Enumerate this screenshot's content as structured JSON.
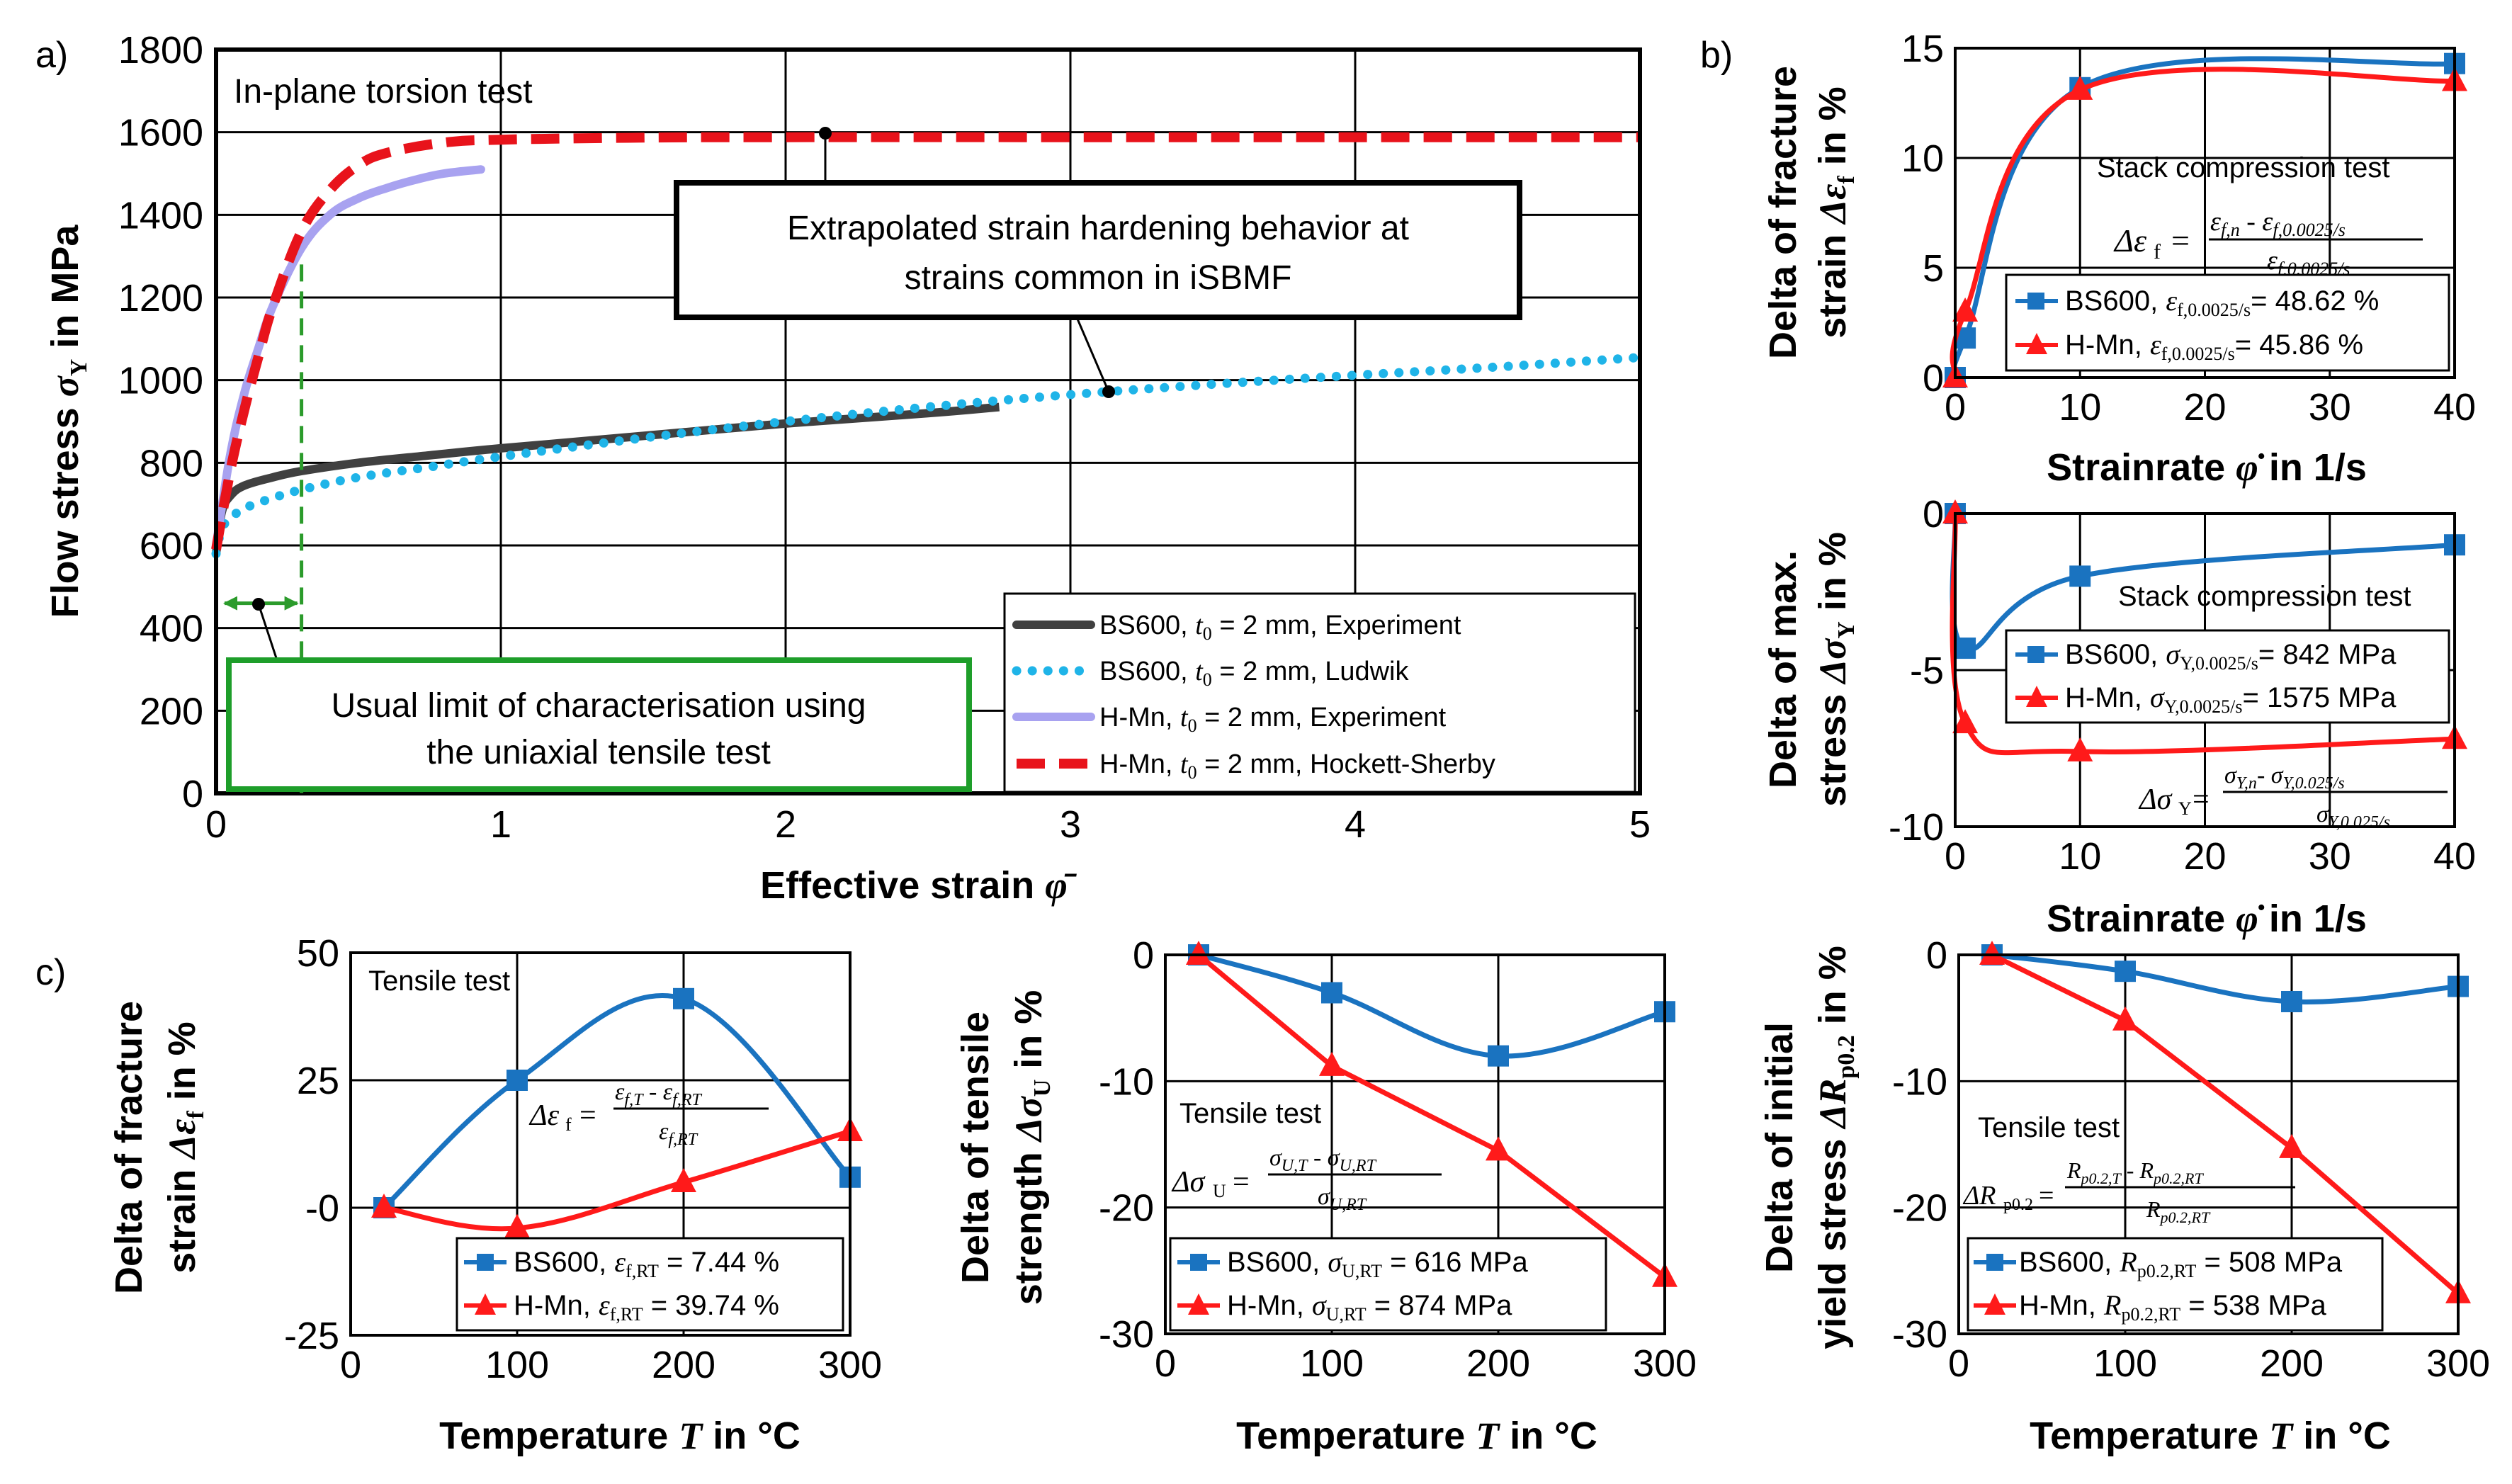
{
  "colors": {
    "bs600_exp": "#404040",
    "bs600_ludwik": "#1fb4e8",
    "hmn_exp": "#a8a2f0",
    "hmn_hs": "#e8131b",
    "blue": "#1a73c0",
    "red": "#ff1a1a",
    "green_dash": "#2b9b2b",
    "green_box": "#1e9e2a"
  },
  "labels": {
    "a": "a)",
    "b": "b)",
    "c": "c)",
    "a_title": "In-plane torsion test",
    "a_callout_1": "Extrapolated strain hardening behavior at",
    "a_callout_2": "strains common in iSBMF",
    "a_green_1": "Usual limit of characterisation using",
    "a_green_2": "the uniaxial tensile test",
    "stack_test": "Stack compression test",
    "tensile_test": "Tensile test"
  },
  "chart_data": [
    {
      "id": "a",
      "type": "line",
      "ylabel": "Flow stress σY in MPa",
      "xlabel": "Effective strain φ̄",
      "xlim": [
        0,
        5
      ],
      "ylim": [
        0,
        1800
      ],
      "xticks": [
        "0",
        "1",
        "2",
        "3",
        "4",
        "5"
      ],
      "yticks": [
        "0",
        "200",
        "400",
        "600",
        "800",
        "1000",
        "1200",
        "1400",
        "1600",
        "1800"
      ],
      "series": [
        {
          "name": "BS600, t0 = 2 mm, Experiment",
          "x": [
            0,
            0.02,
            0.05,
            0.1,
            0.2,
            0.3,
            0.5,
            0.75,
            1.0,
            1.5,
            2.0,
            2.5,
            2.75
          ],
          "y": [
            580,
            680,
            720,
            745,
            765,
            780,
            800,
            818,
            835,
            865,
            895,
            920,
            935
          ]
        },
        {
          "name": "BS600, t0 = 2 mm, Ludwik",
          "x": [
            0,
            0.02,
            0.05,
            0.1,
            0.2,
            0.3,
            0.5,
            0.75,
            1.0,
            1.5,
            2.0,
            2.5,
            3.0,
            3.5,
            4.0,
            4.5,
            5.0
          ],
          "y": [
            580,
            640,
            665,
            690,
            715,
            735,
            765,
            790,
            815,
            860,
            900,
            935,
            965,
            990,
            1012,
            1032,
            1055
          ]
        },
        {
          "name": "H-Mn,   t0 = 2 mm, Experiment",
          "x": [
            0,
            0.05,
            0.1,
            0.15,
            0.2,
            0.3,
            0.4,
            0.5,
            0.6,
            0.7,
            0.8,
            0.93
          ],
          "y": [
            600,
            820,
            970,
            1080,
            1180,
            1320,
            1400,
            1440,
            1465,
            1485,
            1500,
            1510
          ]
        },
        {
          "name": "H-Mn,   t0 = 2 mm, Hockett-Sherby",
          "x": [
            0,
            0.05,
            0.1,
            0.15,
            0.2,
            0.3,
            0.4,
            0.5,
            0.6,
            0.8,
            1.0,
            1.5,
            2.0,
            3.0,
            4.0,
            5.0
          ],
          "y": [
            590,
            780,
            930,
            1060,
            1180,
            1360,
            1460,
            1520,
            1550,
            1575,
            1582,
            1587,
            1588,
            1588,
            1588,
            1588
          ]
        }
      ],
      "legend": [
        "BS600, t0 = 2 mm, Experiment",
        "BS600, t0 = 2 mm, Ludwik",
        "H-Mn,   t0 = 2 mm, Experiment",
        "H-Mn,   t0 = 2 mm, Hockett-Sherby"
      ],
      "limit_strain": 0.3
    },
    {
      "id": "b_top",
      "type": "line",
      "ylabel_1": "Delta of fracture",
      "ylabel_2": "strain Δεf in %",
      "xlabel": "Strainrate φ̇ in 1/s",
      "xlim": [
        0,
        40
      ],
      "ylim": [
        0,
        15
      ],
      "xticks": [
        "0",
        "10",
        "20",
        "30",
        "40"
      ],
      "yticks": [
        "0",
        "5",
        "10",
        "15"
      ],
      "series": [
        {
          "name": "BS600, εf,0.0025/s= 48.62 %",
          "x": [
            0,
            0.8,
            10,
            40
          ],
          "y": [
            0,
            1.8,
            13.2,
            14.3
          ]
        },
        {
          "name": "H-Mn, εf,0.0025/s= 45.86 %",
          "x": [
            0,
            0.8,
            10,
            40
          ],
          "y": [
            0,
            3.0,
            13.1,
            13.5
          ]
        }
      ],
      "legend": [
        "BS600, εf,0.0025/s= 48.62 %",
        "H-Mn, εf,0.0025/s= 45.86 %"
      ]
    },
    {
      "id": "b_bottom",
      "type": "line",
      "ylabel_1": "Delta of max.",
      "ylabel_2": "stress ΔσY in %",
      "xlabel": "Strainrate φ̇ in 1/s",
      "xlim": [
        0,
        40
      ],
      "ylim": [
        -10,
        0
      ],
      "xticks": [
        "0",
        "10",
        "20",
        "30",
        "40"
      ],
      "yticks": [
        "0",
        "-5",
        "-10"
      ],
      "series": [
        {
          "name": "BS600, σY,0.0025/s= 842 MPa",
          "x": [
            0,
            0.8,
            10,
            40
          ],
          "y": [
            0,
            -4.3,
            -2.0,
            -1.0
          ]
        },
        {
          "name": "H-Mn, σY,0.0025/s= 1575 MPa",
          "x": [
            0,
            0.8,
            10,
            40
          ],
          "y": [
            0,
            -6.7,
            -7.6,
            -7.2
          ]
        }
      ],
      "legend": [
        "BS600, σY,0.0025/s= 842 MPa",
        "H-Mn, σY,0.0025/s= 1575 MPa"
      ]
    },
    {
      "id": "c1",
      "type": "line",
      "ylabel_1": "Delta of fracture",
      "ylabel_2": "strain Δεf in %",
      "xlabel": "Temperature T in °C",
      "xlim": [
        0,
        300
      ],
      "ylim": [
        -25,
        50
      ],
      "xticks": [
        "0",
        "100",
        "200",
        "300"
      ],
      "yticks": [
        "50",
        "25",
        "-0",
        "-25"
      ],
      "series": [
        {
          "name": "BS600, εf,RT = 7.44 %",
          "x": [
            20,
            100,
            200,
            300
          ],
          "y": [
            0,
            25,
            41,
            6
          ]
        },
        {
          "name": "H-Mn, εf,RT = 39.74 %",
          "x": [
            20,
            100,
            200,
            300
          ],
          "y": [
            0,
            -4,
            5,
            15
          ]
        }
      ],
      "legend": [
        "BS600, εf,RT = 7.44 %",
        "H-Mn, εf,RT = 39.74 %"
      ]
    },
    {
      "id": "c2",
      "type": "line",
      "ylabel_1": "Delta of tensile",
      "ylabel_2": "strength ΔσU in %",
      "xlabel": "Temperature T in °C",
      "xlim": [
        0,
        300
      ],
      "ylim": [
        -30,
        0
      ],
      "xticks": [
        "0",
        "100",
        "200",
        "300"
      ],
      "yticks": [
        "0",
        "-10",
        "-20",
        "-30"
      ],
      "series": [
        {
          "name": "BS600, σU,RT = 616 MPa",
          "x": [
            20,
            100,
            200,
            300
          ],
          "y": [
            0,
            -3,
            -8,
            -4.5
          ]
        },
        {
          "name": "H-Mn, σU,RT = 874 MPa",
          "x": [
            20,
            100,
            200,
            300
          ],
          "y": [
            0,
            -8.8,
            -15.5,
            -25.5
          ]
        }
      ],
      "legend": [
        "BS600, σU,RT = 616 MPa",
        "H-Mn, σU,RT = 874 MPa"
      ]
    },
    {
      "id": "c3",
      "type": "line",
      "ylabel_1": "Delta of initial",
      "ylabel_2": "yield stress ΔRp0.2 in %",
      "xlabel": "Temperature T in °C",
      "xlim": [
        0,
        300
      ],
      "ylim": [
        -30,
        0
      ],
      "xticks": [
        "0",
        "100",
        "200",
        "300"
      ],
      "yticks": [
        "0",
        "-10",
        "-20",
        "-30"
      ],
      "series": [
        {
          "name": "BS600, Rp0.2,RT = 508 MPa",
          "x": [
            20,
            100,
            200,
            300
          ],
          "y": [
            0,
            -1.3,
            -3.7,
            -2.5
          ]
        },
        {
          "name": "H-Mn, Rp0.2,RT = 538 MPa",
          "x": [
            20,
            100,
            200,
            300
          ],
          "y": [
            0,
            -5.2,
            -15.3,
            -26.8
          ]
        }
      ],
      "legend": [
        "BS600, Rp0.2,RT = 508 MPa",
        "H-Mn, Rp0.2,RT = 538 MPa"
      ]
    }
  ]
}
